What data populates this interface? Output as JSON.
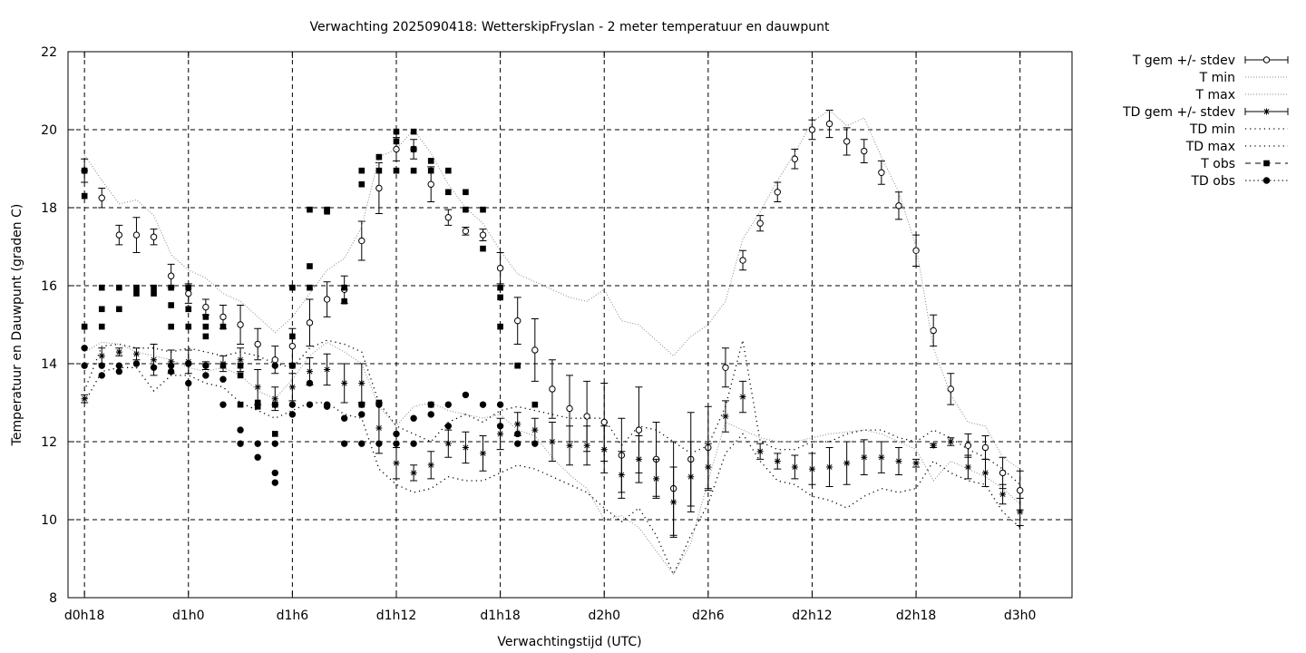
{
  "chart_data": {
    "type": "scatter",
    "title": "Verwachting 2025090418: WetterskipFryslan - 2 meter temperatuur en dauwpunt",
    "xlabel": "Verwachtingstijd (UTC)",
    "ylabel": "Temperatuur en Dauwpunt (graden C)",
    "xlim": [
      -0.95,
      57
    ],
    "ylim": [
      8,
      22
    ],
    "yticks": [
      8,
      10,
      12,
      14,
      16,
      18,
      20,
      22
    ],
    "xticks": [
      {
        "x": 0,
        "label": "d0h18"
      },
      {
        "x": 6,
        "label": "d1h0"
      },
      {
        "x": 12,
        "label": "d1h6"
      },
      {
        "x": 18,
        "label": "d1h12"
      },
      {
        "x": 24,
        "label": "d1h18"
      },
      {
        "x": 30,
        "label": "d2h0"
      },
      {
        "x": 36,
        "label": "d2h6"
      },
      {
        "x": 42,
        "label": "d2h12"
      },
      {
        "x": 48,
        "label": "d2h18"
      },
      {
        "x": 54,
        "label": "d3h0"
      }
    ],
    "grid": true,
    "legend_position": "outside-top-right",
    "legend": [
      "T gem +/- stdev",
      "T min",
      "T max",
      "TD gem +/- stdev",
      "TD min",
      "TD max",
      "T obs",
      "TD obs"
    ],
    "series": [
      {
        "name": "T gem +/- stdev",
        "style": "errorbar-open-circle",
        "x": [
          0,
          1,
          2,
          3,
          4,
          5,
          6,
          7,
          8,
          9,
          10,
          11,
          12,
          13,
          14,
          15,
          16,
          17,
          18,
          19,
          20,
          21,
          22,
          23,
          24,
          25,
          26,
          27,
          28,
          29,
          30,
          31,
          32,
          33,
          34,
          35,
          36,
          37,
          38,
          39,
          40,
          41,
          42,
          43,
          44,
          45,
          46,
          47,
          48,
          49,
          50,
          51,
          52,
          53,
          54
        ],
        "y": [
          18.95,
          18.25,
          17.3,
          17.3,
          17.25,
          16.25,
          15.8,
          15.45,
          15.2,
          15.0,
          14.5,
          14.1,
          14.45,
          15.05,
          15.65,
          15.9,
          17.15,
          18.5,
          19.5,
          19.5,
          18.6,
          17.75,
          17.4,
          17.3,
          16.45,
          15.1,
          14.35,
          13.35,
          12.85,
          12.65,
          12.5,
          11.65,
          12.3,
          11.55,
          10.8,
          11.55,
          11.85,
          13.9,
          16.65,
          17.6,
          18.4,
          19.25,
          20.0,
          20.15,
          19.7,
          19.45,
          18.9,
          18.05,
          16.9,
          14.85,
          13.35,
          11.9,
          11.85,
          11.2,
          10.75
        ],
        "err": [
          0.3,
          0.25,
          0.25,
          0.45,
          0.2,
          0.3,
          0.25,
          0.2,
          0.3,
          0.5,
          0.4,
          0.35,
          0.45,
          0.6,
          0.45,
          0.35,
          0.5,
          0.65,
          0.3,
          0.25,
          0.45,
          0.2,
          0.1,
          0.15,
          0.4,
          0.6,
          0.8,
          0.75,
          0.85,
          0.9,
          1.0,
          0.95,
          1.1,
          0.95,
          1.2,
          1.2,
          1.05,
          0.5,
          0.25,
          0.2,
          0.25,
          0.25,
          0.25,
          0.35,
          0.35,
          0.3,
          0.3,
          0.35,
          0.4,
          0.4,
          0.4,
          0.3,
          0.3,
          0.4,
          0.5
        ]
      },
      {
        "name": "T min",
        "style": "dotted-line",
        "x": [
          0,
          1,
          2,
          3,
          4,
          5,
          6,
          7,
          8,
          9,
          10,
          11,
          12,
          13,
          14,
          15,
          16,
          17,
          18,
          19,
          20,
          21,
          22,
          23,
          24,
          25,
          26,
          27,
          28,
          29,
          30,
          31,
          32,
          33,
          34,
          35,
          36,
          37,
          38,
          39,
          40,
          41,
          42,
          43,
          44,
          45,
          46,
          47,
          48,
          49,
          50,
          51,
          52,
          53,
          54
        ],
        "y": [
          14.3,
          14.55,
          14.5,
          14.3,
          14.2,
          14.1,
          13.9,
          13.8,
          13.9,
          13.7,
          13.3,
          13.1,
          13.6,
          14.2,
          14.55,
          14.3,
          14.0,
          12.9,
          12.4,
          12.9,
          13.0,
          12.8,
          12.7,
          12.6,
          12.7,
          12.3,
          12.15,
          11.6,
          11.15,
          10.8,
          10.0,
          10.1,
          9.8,
          9.2,
          8.6,
          9.4,
          11.0,
          12.5,
          12.3,
          12.1,
          12.0,
          12.0,
          12.1,
          12.2,
          12.25,
          12.3,
          12.2,
          12.0,
          11.8,
          11.0,
          11.5,
          11.3,
          11.1,
          10.8,
          10.4
        ]
      },
      {
        "name": "T max",
        "style": "dotted-line",
        "x": [
          0,
          1,
          2,
          3,
          4,
          5,
          6,
          7,
          8,
          9,
          10,
          11,
          12,
          13,
          14,
          15,
          16,
          17,
          18,
          19,
          20,
          21,
          22,
          23,
          24,
          25,
          26,
          27,
          28,
          29,
          30,
          31,
          32,
          33,
          34,
          35,
          36,
          37,
          38,
          39,
          40,
          41,
          42,
          43,
          44,
          45,
          46,
          47,
          48,
          49,
          50,
          51,
          52,
          53,
          54
        ],
        "y": [
          19.35,
          18.7,
          18.1,
          18.2,
          17.8,
          16.8,
          16.4,
          16.2,
          15.8,
          15.6,
          15.2,
          14.8,
          15.2,
          15.8,
          16.4,
          16.7,
          17.5,
          19.3,
          19.5,
          20.0,
          19.4,
          18.6,
          18.0,
          17.6,
          16.9,
          16.3,
          16.1,
          15.9,
          15.7,
          15.6,
          15.9,
          15.1,
          15.0,
          14.6,
          14.2,
          14.7,
          15.0,
          15.6,
          17.2,
          17.9,
          18.7,
          19.4,
          20.2,
          20.5,
          20.1,
          20.3,
          19.3,
          18.4,
          17.0,
          14.4,
          13.2,
          12.5,
          12.4,
          11.6,
          11.3
        ]
      },
      {
        "name": "TD gem +/- stdev",
        "style": "errorbar-star",
        "x": [
          0,
          1,
          2,
          3,
          4,
          5,
          6,
          7,
          8,
          9,
          10,
          11,
          12,
          13,
          14,
          15,
          16,
          17,
          18,
          19,
          20,
          21,
          22,
          23,
          24,
          25,
          26,
          27,
          28,
          29,
          30,
          31,
          32,
          33,
          34,
          35,
          36,
          37,
          38,
          39,
          40,
          41,
          42,
          43,
          44,
          45,
          46,
          47,
          48,
          49,
          50,
          51,
          52,
          53,
          54
        ],
        "y": [
          13.1,
          14.2,
          14.3,
          14.25,
          14.1,
          14.05,
          14.05,
          13.95,
          14.0,
          14.1,
          13.4,
          13.1,
          13.4,
          13.8,
          13.85,
          13.5,
          13.5,
          12.35,
          11.45,
          11.2,
          11.4,
          11.95,
          11.85,
          11.7,
          12.2,
          12.45,
          12.3,
          12.0,
          11.9,
          11.9,
          11.8,
          11.15,
          11.55,
          11.05,
          10.45,
          11.1,
          11.35,
          12.65,
          13.15,
          11.75,
          11.5,
          11.35,
          11.3,
          11.35,
          11.45,
          11.6,
          11.6,
          11.5,
          11.45,
          11.9,
          12.0,
          11.35,
          11.2,
          10.65,
          10.2
        ],
        "err": [
          0.1,
          0.2,
          0.1,
          0.15,
          0.4,
          0.3,
          0.3,
          0.1,
          0.2,
          0.3,
          0.45,
          0.3,
          0.35,
          0.35,
          0.4,
          0.5,
          0.5,
          0.65,
          0.4,
          0.2,
          0.35,
          0.35,
          0.4,
          0.45,
          0.4,
          0.3,
          0.3,
          0.5,
          0.5,
          0.5,
          0.6,
          0.6,
          0.6,
          0.5,
          0.9,
          0.9,
          0.6,
          0.4,
          0.4,
          0.2,
          0.2,
          0.3,
          0.4,
          0.5,
          0.55,
          0.45,
          0.4,
          0.35,
          0.1,
          0.05,
          0.1,
          0.3,
          0.35,
          0.25,
          0.35
        ]
      },
      {
        "name": "TD min",
        "style": "dotted-line",
        "x": [
          0,
          1,
          2,
          3,
          4,
          5,
          6,
          7,
          8,
          9,
          10,
          11,
          12,
          13,
          14,
          15,
          16,
          17,
          18,
          19,
          20,
          21,
          22,
          23,
          24,
          25,
          26,
          27,
          28,
          29,
          30,
          31,
          32,
          33,
          34,
          35,
          36,
          37,
          38,
          39,
          40,
          41,
          42,
          43,
          44,
          45,
          46,
          47,
          48,
          49,
          50,
          51,
          52,
          53,
          54
        ],
        "y": [
          13.0,
          13.8,
          13.9,
          13.9,
          13.3,
          13.7,
          13.7,
          13.5,
          13.4,
          13.0,
          12.8,
          12.6,
          12.8,
          13.0,
          13.0,
          12.7,
          12.6,
          11.3,
          10.9,
          10.7,
          10.8,
          11.1,
          11.0,
          11.0,
          11.2,
          11.4,
          11.3,
          11.1,
          10.9,
          10.7,
          10.3,
          9.95,
          10.3,
          9.6,
          8.6,
          9.6,
          10.4,
          11.7,
          12.2,
          11.5,
          11.0,
          10.9,
          10.6,
          10.5,
          10.3,
          10.6,
          10.8,
          10.7,
          10.8,
          11.5,
          11.2,
          11.0,
          10.9,
          10.2,
          9.8
        ]
      },
      {
        "name": "TD max",
        "style": "dotted-line",
        "x": [
          0,
          1,
          2,
          3,
          4,
          5,
          6,
          7,
          8,
          9,
          10,
          11,
          12,
          13,
          14,
          15,
          16,
          17,
          18,
          19,
          20,
          21,
          22,
          23,
          24,
          25,
          26,
          27,
          28,
          29,
          30,
          31,
          32,
          33,
          34,
          35,
          36,
          37,
          38,
          39,
          40,
          41,
          42,
          43,
          44,
          45,
          46,
          47,
          48,
          49,
          50,
          51,
          52,
          53,
          54
        ],
        "y": [
          13.3,
          14.45,
          14.5,
          14.4,
          14.4,
          14.3,
          14.4,
          14.3,
          14.2,
          14.3,
          14.2,
          14.0,
          13.9,
          14.4,
          14.6,
          14.5,
          14.3,
          13.0,
          12.4,
          12.2,
          12.0,
          12.5,
          12.7,
          12.5,
          12.8,
          12.9,
          12.8,
          12.7,
          12.6,
          12.6,
          12.6,
          11.9,
          12.4,
          12.3,
          12.0,
          11.7,
          11.9,
          12.9,
          14.6,
          12.0,
          11.8,
          11.8,
          12.0,
          12.0,
          12.2,
          12.3,
          12.3,
          12.1,
          12.0,
          12.3,
          12.1,
          11.8,
          11.6,
          11.3,
          10.9
        ]
      },
      {
        "name": "T obs",
        "style": "filled-square",
        "x": [
          0,
          0,
          0,
          1,
          1,
          1,
          2,
          2,
          3,
          3,
          4,
          4,
          5,
          5,
          5,
          6,
          6,
          6,
          7,
          7,
          7,
          8,
          8,
          9,
          9,
          9,
          10,
          10,
          11,
          11,
          12,
          12,
          12,
          13,
          13,
          13,
          14,
          14,
          15,
          15,
          16,
          16,
          16,
          17,
          17,
          17,
          18,
          18,
          18,
          19,
          19,
          19,
          20,
          20,
          20,
          21,
          21,
          22,
          22,
          23,
          23,
          24,
          24,
          24,
          25,
          25,
          26
        ],
        "y": [
          18.95,
          18.3,
          14.95,
          15.95,
          15.4,
          14.95,
          15.95,
          15.4,
          15.95,
          15.8,
          15.95,
          15.8,
          15.95,
          15.5,
          14.95,
          15.95,
          15.4,
          14.95,
          15.2,
          14.95,
          14.7,
          14.95,
          13.95,
          13.95,
          13.7,
          12.95,
          13.0,
          12.9,
          12.95,
          12.2,
          15.95,
          14.7,
          13.95,
          17.95,
          16.5,
          15.95,
          17.95,
          17.9,
          15.95,
          15.6,
          18.95,
          18.6,
          12.95,
          19.3,
          18.95,
          13.0,
          19.95,
          19.7,
          18.95,
          19.95,
          19.5,
          18.95,
          19.2,
          18.95,
          12.95,
          18.95,
          18.4,
          18.4,
          17.95,
          17.95,
          16.95,
          15.95,
          15.7,
          14.95,
          13.95,
          13.95,
          12.95
        ]
      },
      {
        "name": "TD obs",
        "style": "filled-circle",
        "x": [
          0,
          0,
          1,
          1,
          2,
          2,
          3,
          4,
          5,
          5,
          6,
          6,
          7,
          7,
          8,
          8,
          9,
          9,
          10,
          10,
          11,
          11,
          11,
          11,
          11,
          12,
          12,
          12,
          13,
          13,
          14,
          14,
          15,
          15,
          16,
          16,
          16,
          17,
          17,
          18,
          18,
          19,
          19,
          20,
          20,
          21,
          21,
          22,
          23,
          24,
          24,
          25,
          25,
          26
        ],
        "y": [
          14.4,
          13.95,
          13.7,
          13.95,
          13.8,
          13.95,
          14.0,
          13.9,
          13.8,
          13.95,
          13.5,
          14.0,
          13.7,
          13.95,
          13.6,
          12.95,
          12.3,
          11.95,
          11.6,
          11.95,
          11.2,
          10.95,
          11.95,
          12.95,
          13.95,
          12.7,
          12.95,
          13.95,
          13.5,
          12.95,
          12.9,
          12.95,
          12.6,
          11.95,
          12.95,
          12.7,
          11.95,
          12.95,
          11.95,
          12.2,
          11.95,
          12.6,
          11.95,
          12.95,
          12.7,
          12.95,
          12.4,
          13.2,
          12.95,
          12.95,
          12.4,
          12.2,
          11.95,
          11.95
        ]
      }
    ]
  }
}
